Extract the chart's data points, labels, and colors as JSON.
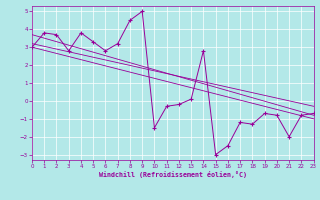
{
  "x": [
    0,
    1,
    2,
    3,
    4,
    5,
    6,
    7,
    8,
    9,
    10,
    11,
    12,
    13,
    14,
    15,
    16,
    17,
    18,
    19,
    20,
    21,
    22,
    23
  ],
  "y": [
    3.0,
    3.8,
    3.7,
    2.8,
    3.8,
    3.3,
    2.8,
    3.2,
    4.5,
    5.0,
    -1.5,
    -0.3,
    -0.2,
    0.1,
    2.8,
    -3.0,
    -2.5,
    -1.2,
    -1.3,
    -0.7,
    -0.8,
    -2.0,
    -0.8,
    -0.7
  ],
  "line_color": "#990099",
  "marker": "+",
  "marker_color": "#990099",
  "bg_color": "#b3e8e8",
  "grid_color": "#ffffff",
  "xlabel": "Windchill (Refroidissement éolien,°C)",
  "xlabel_color": "#990099",
  "tick_color": "#990099",
  "xlim": [
    0,
    23
  ],
  "ylim": [
    -3.3,
    5.3
  ],
  "yticks": [
    -3,
    -2,
    -1,
    0,
    1,
    2,
    3,
    4,
    5
  ],
  "xticks": [
    0,
    1,
    2,
    3,
    4,
    5,
    6,
    7,
    8,
    9,
    10,
    11,
    12,
    13,
    14,
    15,
    16,
    17,
    18,
    19,
    20,
    21,
    22,
    23
  ],
  "figsize": [
    3.2,
    2.0
  ],
  "dpi": 100,
  "trend_lines": [
    {
      "x0": 0,
      "y0": 3.7,
      "x1": 23,
      "y1": -0.8
    },
    {
      "x0": 0,
      "y0": 3.2,
      "x1": 23,
      "y1": -0.3
    },
    {
      "x0": 0,
      "y0": 3.0,
      "x1": 23,
      "y1": -1.0
    }
  ]
}
